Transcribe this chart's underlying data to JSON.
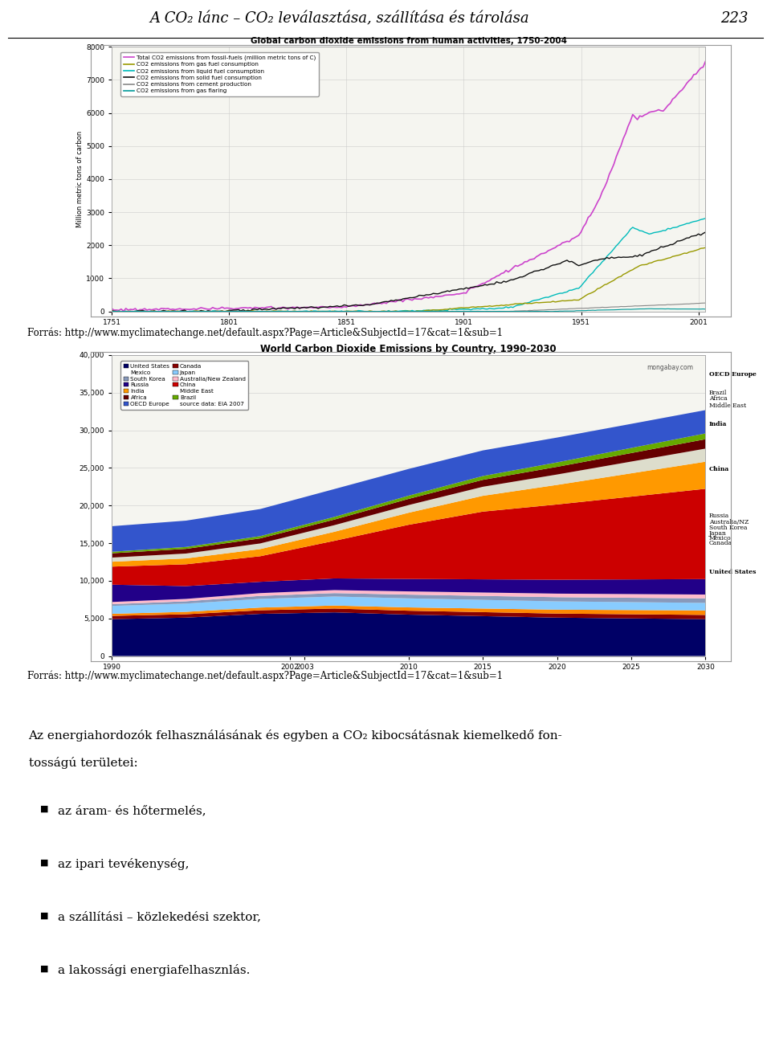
{
  "page_title": "A CO₂ lánc – CO₂ leválasztása, szállítása és tárolása",
  "page_number": "223",
  "source_url1": "Forrás: http://www.myclimatechange.net/default.aspx?Page=Article&SubjectId=17&cat=1&sub=1",
  "source_url2": "Forrás: http://www.myclimatechange.net/default.aspx?Page=Article&SubjectId=17&cat=1&sub=1",
  "bullet_points": [
    "az áram- és hőtermelés,",
    "az ipari tevékenység,",
    "a szállítási – közlekedési szektor,",
    "a lakossági energiafelhasznlás."
  ],
  "chart1_title": "Global carbon dioxide emissions from human activities, 1750-2004",
  "chart1_ylabel": "Million metric tons of carbon",
  "chart1_yticks": [
    0,
    1000,
    2000,
    3000,
    4000,
    5000,
    6000,
    7000,
    8000
  ],
  "chart1_xticks": [
    1751,
    1801,
    1851,
    1901,
    1951,
    2001
  ],
  "chart2_title": "World Carbon Dioxide Emissions by Country, 1990-2030",
  "bg_color": "#ffffff",
  "chart1_legend": [
    [
      "#cc44cc",
      "Total CO2 emissions from fossil-fuels (million metric tons of C)"
    ],
    [
      "#888800",
      "CO2 emissions from gas fuel consumption"
    ],
    [
      "#00cccc",
      "CO2 emissions from liquid fuel consumption"
    ],
    [
      "#222222",
      "CO2 emissions from solid fuel consumption"
    ],
    [
      "#888888",
      "CO2 emissions from cement production"
    ],
    [
      "#008888",
      "CO2 emissions from gas flaring"
    ]
  ],
  "chart2_legend_left": [
    [
      "#000080",
      "United States"
    ],
    [
      "",
      "Mexico"
    ],
    [
      "#8080c0",
      "South Korea"
    ],
    [
      "#000099",
      "Russia"
    ],
    [
      "#cc8800",
      "India"
    ],
    [
      "#880000",
      "Africa"
    ],
    [
      "#0000cc",
      "OECD Europe"
    ]
  ],
  "chart2_legend_right": [
    [
      "#880000",
      "Canada"
    ],
    [
      "#aaddff",
      "Japan"
    ],
    [
      "#ffaacc",
      "Australia/New Zealand"
    ],
    [
      "#cc0000",
      "China"
    ],
    [
      "",
      "Middle East"
    ],
    [
      "#66aa00",
      "Brazil"
    ]
  ]
}
